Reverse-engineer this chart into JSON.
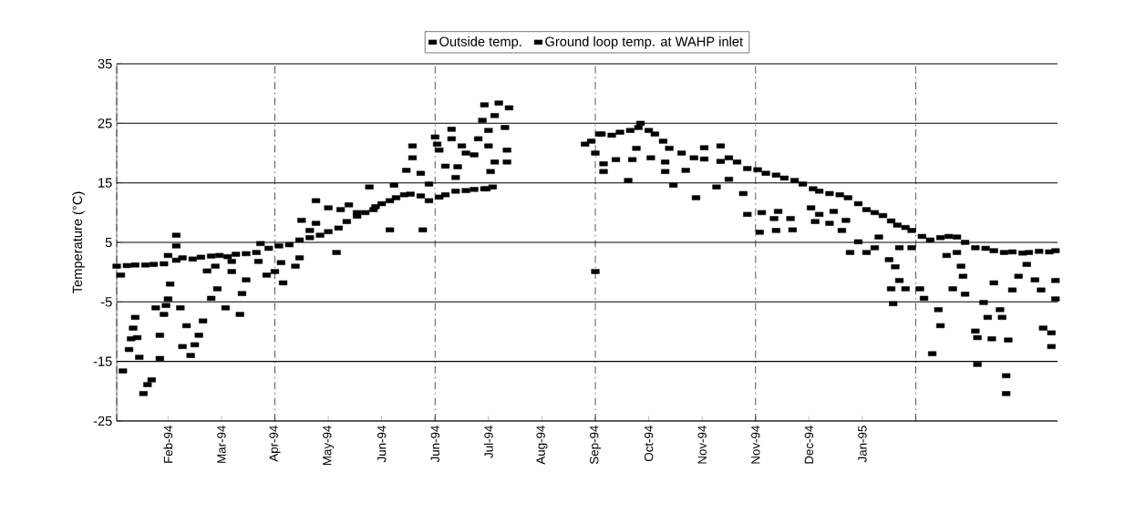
{
  "chart_data": {
    "type": "scatter",
    "ylabel": "Temperature (°C)",
    "xlim": [
      "1994-01-23",
      "1995-04-26"
    ],
    "ylim": [
      -25,
      35
    ],
    "yticks": [
      -25,
      -15,
      -5,
      5,
      15,
      25,
      35
    ],
    "xticks": [
      {
        "value": "1994-02-17",
        "label": "Feb-94"
      },
      {
        "value": "1994-03-15",
        "label": "Mar-94"
      },
      {
        "value": "1994-04-10",
        "label": "Apr-94"
      },
      {
        "value": "1994-05-06",
        "label": "May-94"
      },
      {
        "value": "1994-06-01",
        "label": "Jun-94"
      },
      {
        "value": "1994-06-27",
        "label": "Jun-94"
      },
      {
        "value": "1994-07-23",
        "label": "Jul-94"
      },
      {
        "value": "1994-08-18",
        "label": "Aug-94"
      },
      {
        "value": "1994-09-13",
        "label": "Sep-94"
      },
      {
        "value": "1994-10-09",
        "label": "Oct-94"
      },
      {
        "value": "1994-11-04",
        "label": "Nov-94"
      },
      {
        "value": "1994-11-30",
        "label": "Nov-94"
      },
      {
        "value": "1994-12-26",
        "label": "Dec-94"
      },
      {
        "value": "1995-01-21",
        "label": "Jan-95"
      },
      {
        "value": "1994-01-23",
        "label": null
      },
      {
        "value": "1994-04-10",
        "label": null
      },
      {
        "value": "1994-06-27",
        "label": null
      },
      {
        "value": "1994-09-13",
        "label": null
      },
      {
        "value": "1994-11-30",
        "label": null
      },
      {
        "value": "1995-02-16",
        "label": null
      }
    ],
    "grid": true,
    "legend": "top",
    "marker": "square",
    "series": [
      {
        "name": "Outside temp.",
        "color": "#000000",
        "x": [
          "1994-01-25",
          "1994-01-26",
          "1994-01-29",
          "1994-01-30",
          "1994-01-31",
          "1994-02-01",
          "1994-02-02",
          "1994-02-03",
          "1994-02-05",
          "1994-02-07",
          "1994-02-09",
          "1994-02-11",
          "1994-02-13",
          "1994-02-13",
          "1994-02-15",
          "1994-02-16",
          "1994-02-17",
          "1994-02-18",
          "1994-02-21",
          "1994-02-21",
          "1994-02-23",
          "1994-02-24",
          "1994-02-26",
          "1994-02-28",
          "1994-03-02",
          "1994-03-04",
          "1994-03-06",
          "1994-03-08",
          "1994-03-10",
          "1994-03-12",
          "1994-03-13",
          "1994-03-17",
          "1994-03-20",
          "1994-03-20",
          "1994-03-24",
          "1994-03-25",
          "1994-03-27",
          "1994-04-02",
          "1994-04-06",
          "1994-04-10",
          "1994-04-13",
          "1994-04-14",
          "1994-04-20",
          "1994-04-22",
          "1994-04-23",
          "1994-04-27",
          "1994-04-30",
          "1994-04-30",
          "1994-05-06",
          "1994-05-10",
          "1994-05-12",
          "1994-05-16",
          "1994-05-20",
          "1994-05-26",
          "1994-05-29",
          "1994-06-05",
          "1994-06-07",
          "1994-06-13",
          "1994-06-16",
          "1994-06-16",
          "1994-06-20",
          "1994-06-21",
          "1994-06-24",
          "1994-06-27",
          "1994-06-28",
          "1994-06-29",
          "1994-07-02",
          "1994-07-05",
          "1994-07-05",
          "1994-07-07",
          "1994-07-08",
          "1994-07-10",
          "1994-07-12",
          "1994-07-16",
          "1994-07-18",
          "1994-07-20",
          "1994-07-21",
          "1994-07-22",
          "1994-07-23",
          "1994-07-23",
          "1994-07-24",
          "1994-07-26",
          "1994-07-26",
          "1994-07-28",
          "1994-07-31",
          "1994-08-01",
          "1994-08-01",
          "1994-08-02",
          "1994-09-13",
          "1994-09-13",
          "1994-09-15",
          "1994-09-17",
          "1994-09-17",
          "1994-09-23",
          "1994-09-29",
          "1994-10-01",
          "1994-10-03",
          "1994-10-05",
          "1994-10-10",
          "1994-10-17",
          "1994-10-17",
          "1994-10-21",
          "1994-10-27",
          "1994-11-01",
          "1994-11-05",
          "1994-11-11",
          "1994-11-13",
          "1994-11-17",
          "1994-11-24",
          "1994-11-26",
          "1994-12-02",
          "1994-12-03",
          "1994-12-09",
          "1994-12-10",
          "1994-12-11",
          "1994-12-17",
          "1994-12-18",
          "1994-12-27",
          "1994-12-29",
          "1994-12-31",
          "1995-01-05",
          "1995-01-07",
          "1995-01-11",
          "1995-01-13",
          "1995-01-15",
          "1995-01-19",
          "1995-01-23",
          "1995-01-27",
          "1995-01-29",
          "1995-02-03",
          "1995-02-04",
          "1995-02-05",
          "1995-02-06",
          "1995-02-08",
          "1995-02-08",
          "1995-02-11",
          "1995-02-14",
          "1995-02-18",
          "1995-02-20",
          "1995-02-24",
          "1995-02-27",
          "1995-02-28",
          "1995-03-03",
          "1995-03-06",
          "1995-03-08",
          "1995-03-10",
          "1995-03-11",
          "1995-03-12",
          "1995-03-17",
          "1995-03-18",
          "1995-03-18",
          "1995-03-21",
          "1995-03-23",
          "1995-03-25",
          "1995-03-26",
          "1995-03-29",
          "1995-03-30",
          "1995-04-01",
          "1995-04-01",
          "1995-04-02",
          "1995-04-04",
          "1995-04-07",
          "1995-04-11",
          "1995-04-15",
          "1995-04-18",
          "1995-04-19",
          "1995-04-23",
          "1995-04-23",
          "1995-04-25",
          "1995-04-25"
        ],
        "values": [
          -0.5,
          -16.6,
          -13,
          -11.2,
          -9.4,
          -7.6,
          -11,
          -14.3,
          -20.4,
          -18.9,
          -18.1,
          -6,
          -14.5,
          -10.6,
          -7.1,
          -5.6,
          -4.5,
          -2,
          6.2,
          4.4,
          -6,
          -12.5,
          -9,
          -14,
          -12.2,
          -10.6,
          -8.2,
          0.2,
          -4.4,
          1,
          -2.8,
          -6,
          0.1,
          1.8,
          -7.1,
          -3.6,
          -1.3,
          1.8,
          -0.5,
          0.1,
          1.6,
          -1.8,
          1,
          2.4,
          8.7,
          7,
          8.2,
          12,
          10.8,
          3.3,
          10.5,
          11.3,
          10,
          14.3,
          11,
          7.1,
          14.6,
          17.1,
          21.2,
          19.2,
          16.6,
          7.1,
          14.8,
          22.7,
          21.5,
          20.5,
          17.8,
          24,
          22.4,
          15.9,
          17.7,
          21.2,
          20,
          19.7,
          22.4,
          25.5,
          28.1,
          14,
          23.8,
          21.2,
          16.9,
          26.3,
          18.5,
          28.4,
          24.3,
          20.5,
          18.5,
          27.6,
          0.1,
          20,
          23.2,
          18.2,
          16.9,
          18.9,
          15.4,
          18.9,
          20.8,
          25,
          19.2,
          18.5,
          16.9,
          14.6,
          17.1,
          12.5,
          20.9,
          14.3,
          21.2,
          15.6,
          13.2,
          9.7,
          6.7,
          10,
          9,
          7,
          10.2,
          9,
          7.1,
          10.8,
          8.5,
          9.7,
          8.2,
          10.2,
          7,
          8.7,
          3.3,
          5.1,
          3.3,
          4.1,
          5.9,
          2.1,
          -2.8,
          -5.3,
          0.9,
          -1.4,
          4.1,
          -2.8,
          4.1,
          -2.8,
          -4.4,
          -13.7,
          -6.3,
          -9,
          2.8,
          -2.8,
          3.3,
          1,
          -0.7,
          -3.7,
          -9.9,
          -15.5,
          -11,
          -5.1,
          -7.6,
          -11.2,
          -1.8,
          -6.3,
          -7.6,
          -17.4,
          -20.4,
          -11.4,
          -3,
          -0.7,
          1.3,
          -1.3,
          -3,
          -9.4,
          -12.5,
          -10.2,
          -4.5,
          -1.4
        ]
      },
      {
        "name": "Ground loop temp. at WAHP inlet",
        "color": "#000000",
        "x": [
          "1994-01-23",
          "1994-01-28",
          "1994-02-01",
          "1994-02-06",
          "1994-02-10",
          "1994-02-15",
          "1994-02-17",
          "1994-02-21",
          "1994-02-24",
          "1994-03-01",
          "1994-03-05",
          "1994-03-10",
          "1994-03-14",
          "1994-03-18",
          "1994-03-22",
          "1994-03-27",
          "1994-04-01",
          "1994-04-03",
          "1994-04-07",
          "1994-04-12",
          "1994-04-17",
          "1994-04-22",
          "1994-04-27",
          "1994-05-02",
          "1994-05-06",
          "1994-05-11",
          "1994-05-15",
          "1994-05-20",
          "1994-05-24",
          "1994-05-28",
          "1994-06-01",
          "1994-06-05",
          "1994-06-08",
          "1994-06-12",
          "1994-06-15",
          "1994-06-20",
          "1994-06-24",
          "1994-06-29",
          "1994-07-02",
          "1994-07-07",
          "1994-07-12",
          "1994-07-16",
          "1994-07-21",
          "1994-07-25",
          "1994-09-08",
          "1994-09-11",
          "1994-09-16",
          "1994-09-21",
          "1994-09-25",
          "1994-09-30",
          "1994-10-04",
          "1994-10-09",
          "1994-10-12",
          "1994-10-16",
          "1994-10-19",
          "1994-10-25",
          "1994-10-31",
          "1994-11-05",
          "1994-11-13",
          "1994-11-17",
          "1994-11-21",
          "1994-11-26",
          "1994-12-01",
          "1994-12-05",
          "1994-12-10",
          "1994-12-14",
          "1994-12-19",
          "1994-12-23",
          "1994-12-28",
          "1994-12-31",
          "1995-01-05",
          "1995-01-10",
          "1995-01-14",
          "1995-01-19",
          "1995-01-23",
          "1995-01-27",
          "1995-01-31",
          "1995-02-04",
          "1995-02-07",
          "1995-02-11",
          "1995-02-14",
          "1995-02-19",
          "1995-02-23",
          "1995-02-28",
          "1995-03-04",
          "1995-03-08",
          "1995-03-12",
          "1995-03-17",
          "1995-03-22",
          "1995-03-26",
          "1995-03-31",
          "1995-04-04",
          "1995-04-09",
          "1995-04-12",
          "1995-04-17",
          "1995-04-22",
          "1995-04-25"
        ],
        "values": [
          1.0,
          1.1,
          1.2,
          1.2,
          1.3,
          1.4,
          2.8,
          2.0,
          2.4,
          2.2,
          2.5,
          2.7,
          2.8,
          2.6,
          3.0,
          3.1,
          3.3,
          4.8,
          4.0,
          4.4,
          4.6,
          5.4,
          5.8,
          6.2,
          6.8,
          7.4,
          8.5,
          9.4,
          10.0,
          10.5,
          11.5,
          12.0,
          12.5,
          13.0,
          13.1,
          12.8,
          12.0,
          12.6,
          13.0,
          13.6,
          13.7,
          13.9,
          14.0,
          14.3,
          21.5,
          22.0,
          23.2,
          23.0,
          23.5,
          23.8,
          24.3,
          23.8,
          23.2,
          22.0,
          20.8,
          20.0,
          19.2,
          19.0,
          18.6,
          19.2,
          18.5,
          17.4,
          17.2,
          16.6,
          16.3,
          15.8,
          15.4,
          14.8,
          14.0,
          13.6,
          13.2,
          13.0,
          12.5,
          11.5,
          10.5,
          10.0,
          9.5,
          8.6,
          7.9,
          7.5,
          7.0,
          6.0,
          5.4,
          5.8,
          6.0,
          5.9,
          5.0,
          4.1,
          4.0,
          3.6,
          3.3,
          3.4,
          3.2,
          3.3,
          3.5,
          3.4,
          3.6
        ]
      }
    ]
  }
}
